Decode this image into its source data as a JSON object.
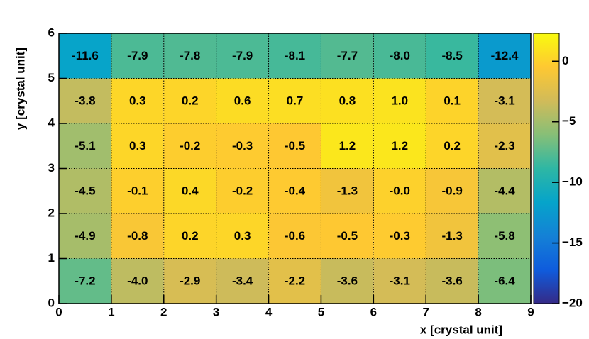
{
  "chart_data": {
    "type": "heatmap",
    "xlabel": "x [crystal unit]",
    "ylabel": "y [crystal unit]",
    "xbins": [
      0,
      1,
      2,
      3,
      4,
      5,
      6,
      7,
      8,
      9
    ],
    "ybins": [
      0,
      1,
      2,
      3,
      4,
      5,
      6
    ],
    "z": [
      [
        -7.2,
        -4.0,
        -2.9,
        -3.4,
        -2.2,
        -3.6,
        -3.1,
        -3.6,
        -6.4
      ],
      [
        -4.9,
        -0.8,
        0.2,
        0.3,
        -0.6,
        -0.5,
        -0.3,
        -1.3,
        -5.8
      ],
      [
        -4.5,
        -0.1,
        0.4,
        -0.2,
        -0.4,
        -1.3,
        0,
        -0.9,
        -4.4
      ],
      [
        -5.1,
        0.3,
        -0.2,
        -0.3,
        -0.5,
        1.2,
        1.2,
        0.2,
        -2.3
      ],
      [
        -3.8,
        0.3,
        0.2,
        0.6,
        0.7,
        0.8,
        1.0,
        0.1,
        -3.1
      ],
      [
        -11.6,
        -7.9,
        -7.8,
        -7.9,
        -8.1,
        -7.7,
        -8.0,
        -8.5,
        -12.4
      ]
    ],
    "value_labels": [
      [
        "-7.2",
        "-4.0",
        "-2.9",
        "-3.4",
        "-2.2",
        "-3.6",
        "-3.1",
        "-3.6",
        "-6.4"
      ],
      [
        "-4.9",
        "-0.8",
        "0.2",
        "0.3",
        "-0.6",
        "-0.5",
        "-0.3",
        "-1.3",
        "-5.8"
      ],
      [
        "-4.5",
        "-0.1",
        "0.4",
        "-0.2",
        "-0.4",
        "-1.3",
        "-0.0",
        "-0.9",
        "-4.4"
      ],
      [
        "-5.1",
        "0.3",
        "-0.2",
        "-0.3",
        "-0.5",
        "1.2",
        "1.2",
        "0.2",
        "-2.3"
      ],
      [
        "-3.8",
        "0.3",
        "0.2",
        "0.6",
        "0.7",
        "0.8",
        "1.0",
        "0.1",
        "-3.1"
      ],
      [
        "-11.6",
        "-7.9",
        "-7.8",
        "-7.9",
        "-8.1",
        "-7.7",
        "-8.0",
        "-8.5",
        "-12.4"
      ]
    ],
    "xlim": [
      0,
      9
    ],
    "ylim": [
      0,
      6
    ],
    "zlim": [
      -20,
      2.3
    ],
    "xticks": [
      0,
      1,
      2,
      3,
      4,
      5,
      6,
      7,
      8,
      9
    ],
    "yticks": [
      0,
      1,
      2,
      3,
      4,
      5,
      6
    ],
    "zticks": [
      {
        "value": -20,
        "label": "−20"
      },
      {
        "value": -15,
        "label": "−15"
      },
      {
        "value": -10,
        "label": "−10"
      },
      {
        "value": -5,
        "label": "−5"
      },
      0
    ],
    "grid": true,
    "colormap": [
      "#352a87",
      "#0f5cdd",
      "#1481d6",
      "#06a4ca",
      "#2eb7a4",
      "#87bf77",
      "#d1bb59",
      "#fec832",
      "#f9fb0e"
    ]
  }
}
